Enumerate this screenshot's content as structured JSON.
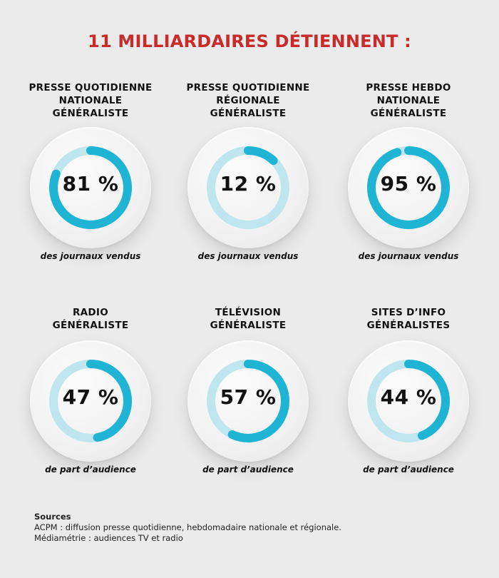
{
  "title": "11 MILLIARDAIRES DÉTIENNENT :",
  "colors": {
    "title": "#c92a2a",
    "ring_value": "#1fb4d4",
    "ring_track": "#bfe6ee"
  },
  "chart_data": {
    "type": "donut",
    "items": [
      {
        "title": [
          "PRESSE QUOTIDIENNE",
          "NATIONALE",
          "GÉNÉRALISTE"
        ],
        "value": 81,
        "label": "81 %",
        "caption": "des journaux vendus"
      },
      {
        "title": [
          "PRESSE QUOTIDIENNE",
          "RÉGIONALE",
          "GÉNÉRALISTE"
        ],
        "value": 12,
        "label": "12 %",
        "caption": "des journaux vendus"
      },
      {
        "title": [
          "PRESSE HEBDO",
          "NATIONALE",
          "GÉNÉRALISTE"
        ],
        "value": 95,
        "label": "95 %",
        "caption": "des journaux vendus"
      },
      {
        "title": [
          "RADIO",
          "GÉNÉRALISTE"
        ],
        "value": 47,
        "label": "47 %",
        "caption": "de part d’audience"
      },
      {
        "title": [
          "TÉLÉVISION",
          "GÉNÉRALISTE"
        ],
        "value": 57,
        "label": "57 %",
        "caption": "de part d’audience"
      },
      {
        "title": [
          "SITES D’INFO",
          "GÉNÉRALISTES"
        ],
        "value": 44,
        "label": "44 %",
        "caption": "de part d’audience"
      }
    ]
  },
  "sources": {
    "title": "Sources",
    "lines": [
      "ACPM : diffusion presse quotidienne, hebdomadaire nationale et régionale.",
      "Médiamétrie : audiences TV et radio"
    ]
  }
}
